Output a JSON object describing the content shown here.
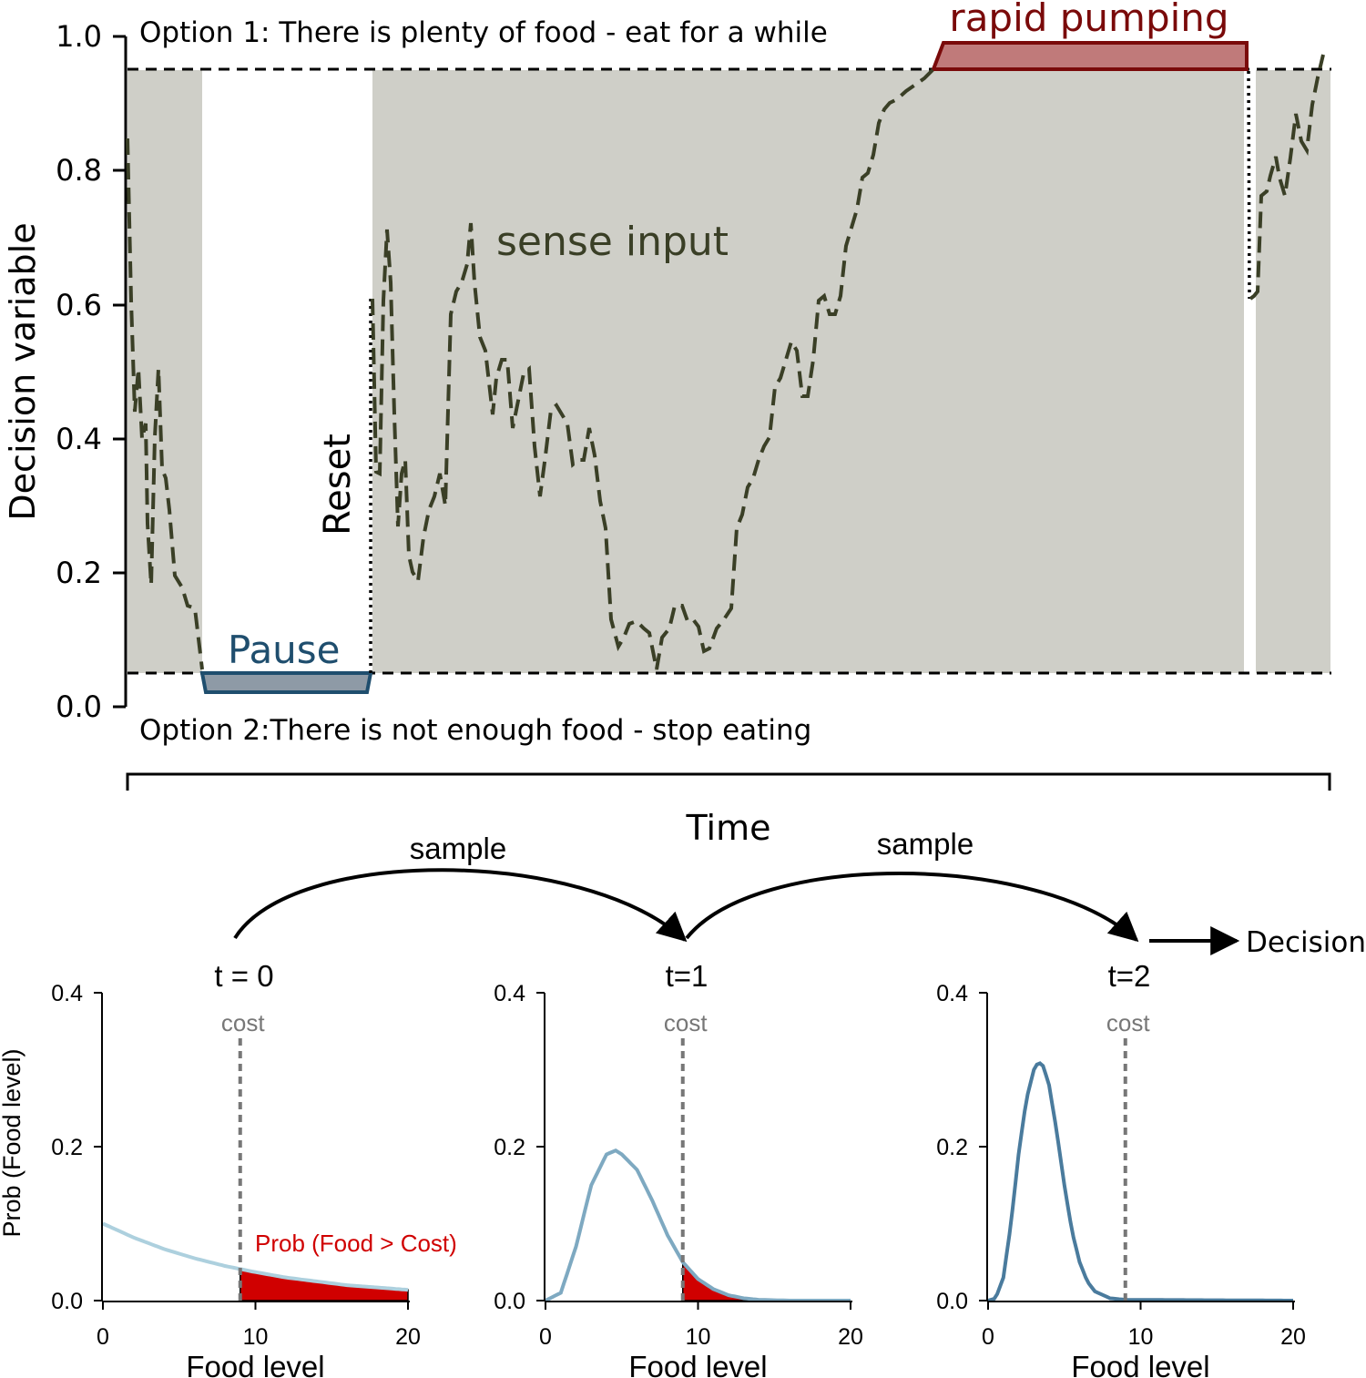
{
  "top_panel": {
    "ylabel": "Decision variable",
    "yticks": [
      "0.0",
      "0.2",
      "0.4",
      "0.6",
      "0.8",
      "1.0"
    ],
    "option1": "Option 1: There is plenty of food - eat for a while",
    "option2": "Option 2:There is not enough food - stop eating",
    "sense_input": "sense input",
    "pause": "Pause",
    "reset": "Reset",
    "rapid_pumping": "rapid pumping",
    "time_label": "Time",
    "thresholds": [
      0.05,
      0.95
    ],
    "colors": {
      "band": "#cfcfc8",
      "trace": "#3a3f26",
      "pause": "#1f4e6e",
      "pause_fill": "#8e9aa6",
      "pumping": "#7a0a0a",
      "pumping_fill": "#c07a7a",
      "option_text": "#000000"
    }
  },
  "flow": {
    "sample_1": "sample",
    "sample_2": "sample",
    "decision": "Decision"
  },
  "bottom_panels": {
    "ylabel": "Prob (Food level)",
    "xlabel": "Food level",
    "yticks": [
      "0.0",
      "0.2",
      "0.4"
    ],
    "xticks": [
      "0",
      "10",
      "20"
    ],
    "cost_label": "cost",
    "prob_label": "Prob (Food > Cost)",
    "titles": [
      "t = 0",
      "t=1",
      "t=2"
    ],
    "colors": [
      "#add0de",
      "#7ea9c1",
      "#4a7b9d"
    ],
    "highlight": "#d00000"
  },
  "chart_data": [
    {
      "type": "line",
      "title": "t = 0",
      "xlabel": "Food level",
      "ylabel": "Prob (Food level)",
      "xlim": [
        0,
        20
      ],
      "ylim": [
        0,
        0.4
      ],
      "cost": 9,
      "x": [
        0,
        2,
        4,
        6,
        8,
        10,
        12,
        14,
        16,
        18,
        20
      ],
      "series": [
        {
          "values": [
            0.1,
            0.082,
            0.067,
            0.055,
            0.045,
            0.037,
            0.03,
            0.025,
            0.02,
            0.017,
            0.014
          ]
        }
      ]
    },
    {
      "type": "line",
      "title": "t=1",
      "xlabel": "Food level",
      "xlim": [
        0,
        20
      ],
      "ylim": [
        0,
        0.4
      ],
      "cost": 9,
      "x": [
        0,
        1,
        2,
        3,
        4,
        4.6,
        5,
        6,
        7,
        8,
        9,
        10,
        11,
        12,
        13,
        14,
        16,
        20
      ],
      "series": [
        {
          "values": [
            0.0,
            0.01,
            0.07,
            0.15,
            0.19,
            0.195,
            0.19,
            0.17,
            0.13,
            0.085,
            0.05,
            0.028,
            0.015,
            0.007,
            0.003,
            0.001,
            0.0,
            0.0
          ]
        }
      ]
    },
    {
      "type": "line",
      "title": "t=2",
      "xlabel": "Food level",
      "xlim": [
        0,
        20
      ],
      "ylim": [
        0,
        0.4
      ],
      "cost": 9,
      "x": [
        0,
        0.5,
        1,
        1.5,
        2,
        2.5,
        3,
        3.3,
        3.6,
        4,
        4.5,
        5,
        5.5,
        6,
        6.5,
        7,
        8,
        9,
        20
      ],
      "series": [
        {
          "values": [
            0.0,
            0.003,
            0.03,
            0.1,
            0.19,
            0.26,
            0.3,
            0.31,
            0.305,
            0.28,
            0.22,
            0.15,
            0.09,
            0.05,
            0.025,
            0.012,
            0.003,
            0.001,
            0.0
          ]
        }
      ]
    }
  ]
}
